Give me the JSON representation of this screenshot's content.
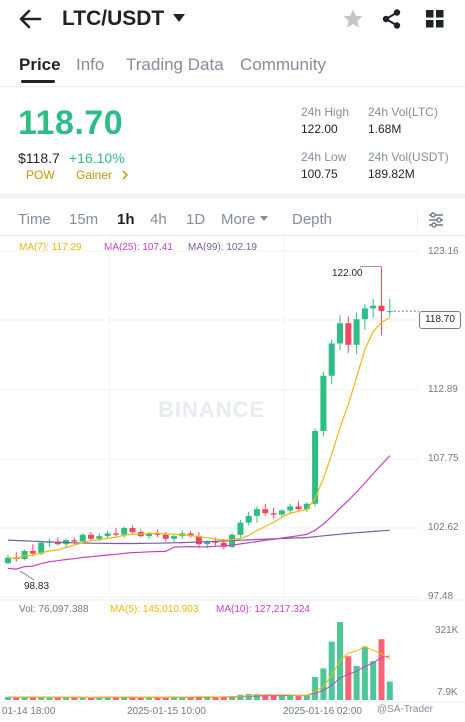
{
  "header": {
    "pair": "LTC/USDT"
  },
  "tabs": [
    {
      "label": "Price"
    },
    {
      "label": "Info"
    },
    {
      "label": "Trading Data"
    },
    {
      "label": "Community"
    }
  ],
  "ticker": {
    "last_price": "118.70",
    "usd_price": "$118.7",
    "change": "+16.10%",
    "tag1": "POW",
    "tag2": "Gainer",
    "high_label": "24h High",
    "high_value": "122.00",
    "low_label": "24h Low",
    "low_value": "100.75",
    "vol_ltc_label": "24h Vol(LTC)",
    "vol_ltc_value": "1.68M",
    "vol_usdt_label": "24h Vol(USDT)",
    "vol_usdt_value": "189.82M"
  },
  "timeframes": [
    {
      "label": "Time"
    },
    {
      "label": "15m"
    },
    {
      "label": "1h"
    },
    {
      "label": "4h"
    },
    {
      "label": "1D"
    },
    {
      "label": "More"
    },
    {
      "label": "Depth"
    }
  ],
  "ma_legend": {
    "ma7": "MA(7): 117.29",
    "ma25": "MA(25): 107.41",
    "ma99": "MA(99): 102.19"
  },
  "vol_legend": {
    "vol": "Vol: 76,097.388",
    "ma5": "MA(5): 145,010.903",
    "ma10": "MA(10): 127,217.324"
  },
  "price_axis": [
    "123.16",
    "112.89",
    "107.75",
    "102.62",
    "97.48"
  ],
  "vol_axis": [
    "321K",
    "7.9K"
  ],
  "time_axis": [
    "01-14 18:00",
    "2025-01-15 10:00",
    "2025-01-16 02:00"
  ],
  "annotations": {
    "current": "118.70",
    "high": "122.00",
    "low": "98.83",
    "watermark": "BINANCE",
    "credit": "@SA-Trader"
  },
  "colors": {
    "up": "#2ebd85",
    "down": "#f6465d",
    "ma7": "#f0b90b",
    "ma25": "#c940c6",
    "ma99": "#7b5ea7",
    "accent": "#c99400"
  },
  "chart_data": {
    "type": "candlestick",
    "interval": "1h",
    "ylim": [
      97.48,
      123.16
    ],
    "candles": [
      [
        100.0,
        100.6,
        99.9,
        100.4
      ],
      [
        100.4,
        100.8,
        100.1,
        100.3
      ],
      [
        100.3,
        101.0,
        100.2,
        100.9
      ],
      [
        100.9,
        101.4,
        100.5,
        100.7
      ],
      [
        100.7,
        101.6,
        100.6,
        101.5
      ],
      [
        101.5,
        101.8,
        101.2,
        101.6
      ],
      [
        101.6,
        101.9,
        101.3,
        101.4
      ],
      [
        101.4,
        101.8,
        101.2,
        101.7
      ],
      [
        101.7,
        101.9,
        101.4,
        101.6
      ],
      [
        101.6,
        102.2,
        101.5,
        102.1
      ],
      [
        102.1,
        102.3,
        101.7,
        101.8
      ],
      [
        101.8,
        102.2,
        101.6,
        102.0
      ],
      [
        102.0,
        102.4,
        101.8,
        102.2
      ],
      [
        102.2,
        102.6,
        102.0,
        102.1
      ],
      [
        102.1,
        102.7,
        101.9,
        102.6
      ],
      [
        102.6,
        102.8,
        102.2,
        102.3
      ],
      [
        102.3,
        102.5,
        101.9,
        102.0
      ],
      [
        102.0,
        102.3,
        101.8,
        102.2
      ],
      [
        102.2,
        102.5,
        101.9,
        102.1
      ],
      [
        102.1,
        102.3,
        101.6,
        101.8
      ],
      [
        101.8,
        102.1,
        101.5,
        102.0
      ],
      [
        102.0,
        102.4,
        101.8,
        102.2
      ],
      [
        102.2,
        102.4,
        101.9,
        102.0
      ],
      [
        102.0,
        102.3,
        101.1,
        101.4
      ],
      [
        101.4,
        101.7,
        101.1,
        101.6
      ],
      [
        101.6,
        101.9,
        101.3,
        101.5
      ],
      [
        101.5,
        101.8,
        101.0,
        101.2
      ],
      [
        101.2,
        102.2,
        101.1,
        102.1
      ],
      [
        102.1,
        103.2,
        101.9,
        103.0
      ],
      [
        103.0,
        103.8,
        102.8,
        103.5
      ],
      [
        103.5,
        104.2,
        103.0,
        104.0
      ],
      [
        104.0,
        104.4,
        103.5,
        103.7
      ],
      [
        103.7,
        104.1,
        103.3,
        103.6
      ],
      [
        103.6,
        104.0,
        103.4,
        103.9
      ],
      [
        103.9,
        104.4,
        103.7,
        104.2
      ],
      [
        104.2,
        104.6,
        103.9,
        104.0
      ],
      [
        104.0,
        104.5,
        103.8,
        104.4
      ],
      [
        104.4,
        110.0,
        104.2,
        109.8
      ],
      [
        109.8,
        114.2,
        109.4,
        113.9
      ],
      [
        113.9,
        116.6,
        113.3,
        116.3
      ],
      [
        116.3,
        118.4,
        115.8,
        117.8
      ],
      [
        117.8,
        118.3,
        115.6,
        116.2
      ],
      [
        116.2,
        118.6,
        115.5,
        118.1
      ],
      [
        118.1,
        119.2,
        117.3,
        118.9
      ],
      [
        118.9,
        119.6,
        118.2,
        119.1
      ],
      [
        119.1,
        122.0,
        116.9,
        118.7
      ],
      [
        118.7,
        119.6,
        118.3,
        118.7
      ]
    ],
    "ma_series": [
      {
        "name": "MA(7)",
        "last": 117.29
      },
      {
        "name": "MA(25)",
        "last": 107.41
      },
      {
        "name": "MA(99)",
        "last": 102.19
      }
    ],
    "volume": [
      12,
      10,
      14,
      11,
      13,
      9,
      10,
      12,
      11,
      10,
      9,
      12,
      14,
      11,
      13,
      10,
      9,
      11,
      12,
      10,
      14,
      11,
      12,
      15,
      13,
      11,
      14,
      16,
      22,
      25,
      24,
      20,
      18,
      19,
      21,
      17,
      20,
      95,
      130,
      240,
      321,
      180,
      140,
      220,
      160,
      250,
      76
    ],
    "volume_ylim": [
      7.9,
      321
    ]
  }
}
